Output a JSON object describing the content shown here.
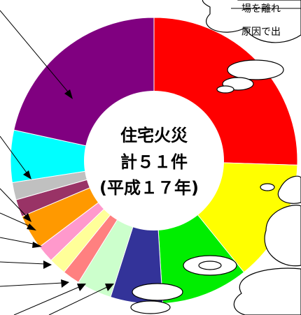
{
  "chart_data": {
    "type": "pie",
    "center_label": [
      "住宅火災",
      "計５１件",
      "(平成１７年)"
    ],
    "annotations": [
      "場を離れ",
      "原因で出"
    ],
    "values": [
      13,
      7,
      5,
      3,
      2,
      1,
      1,
      1,
      2,
      1,
      1,
      3,
      11
    ],
    "colors": [
      "#ff0000",
      "#ffff00",
      "#00ee00",
      "#333399",
      "#ccffcc",
      "#ff8080",
      "#ffff99",
      "#ff99cc",
      "#ff9900",
      "#993366",
      "#c0c0c0",
      "#00ffff",
      "#800080"
    ]
  }
}
